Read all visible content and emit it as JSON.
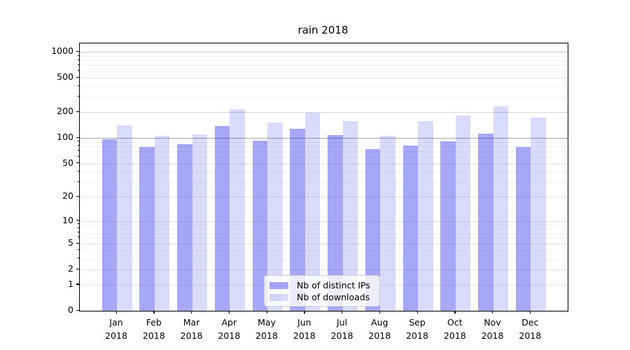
{
  "title": "rain 2018",
  "chart_data": {
    "type": "bar",
    "title": "rain 2018",
    "categories": [
      "Jan 2018",
      "Feb 2018",
      "Mar 2018",
      "Apr 2018",
      "May 2018",
      "Jun 2018",
      "Jul 2018",
      "Aug 2018",
      "Sep 2018",
      "Oct 2018",
      "Nov 2018",
      "Dec 2018"
    ],
    "x_tick_labels": [
      {
        "month": "Jan",
        "year": "2018"
      },
      {
        "month": "Feb",
        "year": "2018"
      },
      {
        "month": "Mar",
        "year": "2018"
      },
      {
        "month": "Apr",
        "year": "2018"
      },
      {
        "month": "May",
        "year": "2018"
      },
      {
        "month": "Jun",
        "year": "2018"
      },
      {
        "month": "Jul",
        "year": "2018"
      },
      {
        "month": "Aug",
        "year": "2018"
      },
      {
        "month": "Sep",
        "year": "2018"
      },
      {
        "month": "Oct",
        "year": "2018"
      },
      {
        "month": "Nov",
        "year": "2018"
      },
      {
        "month": "Dec",
        "year": "2018"
      }
    ],
    "series": [
      {
        "name": "Nb of distinct IPs",
        "color": "rgba(0,0,235,0.345)",
        "values": [
          97,
          78,
          84,
          137,
          93,
          129,
          109,
          74,
          82,
          92,
          112,
          79
        ]
      },
      {
        "name": "Nb of downloads",
        "color": "rgba(0,0,235,0.145)",
        "values": [
          141,
          107,
          111,
          217,
          151,
          197,
          157,
          107,
          158,
          184,
          235,
          174
        ]
      }
    ],
    "yscale": "log10(1+v)",
    "ylim": [
      0,
      1260
    ],
    "y_ticks": [
      0,
      1,
      2,
      5,
      10,
      20,
      50,
      100,
      200,
      500,
      1000
    ],
    "y_minor_ticks": [
      3,
      4,
      6,
      7,
      8,
      9,
      30,
      40,
      60,
      70,
      80,
      90,
      300,
      400,
      600,
      700,
      800,
      900
    ],
    "grid": {
      "major_color": "#e4e4e4",
      "minor_color": "#f3f3f3",
      "emphasis": {
        "100": "#a8a8a8",
        "200": "#d4d4d4",
        "1000": "#c9c9c9"
      }
    },
    "legend_position": "lower center",
    "xlabel": "",
    "ylabel": ""
  },
  "legend": {
    "items": [
      {
        "label": "Nb of distinct IPs",
        "color": "rgba(0,0,235,0.345)"
      },
      {
        "label": "Nb of downloads",
        "color": "rgba(0,0,235,0.145)"
      }
    ]
  }
}
